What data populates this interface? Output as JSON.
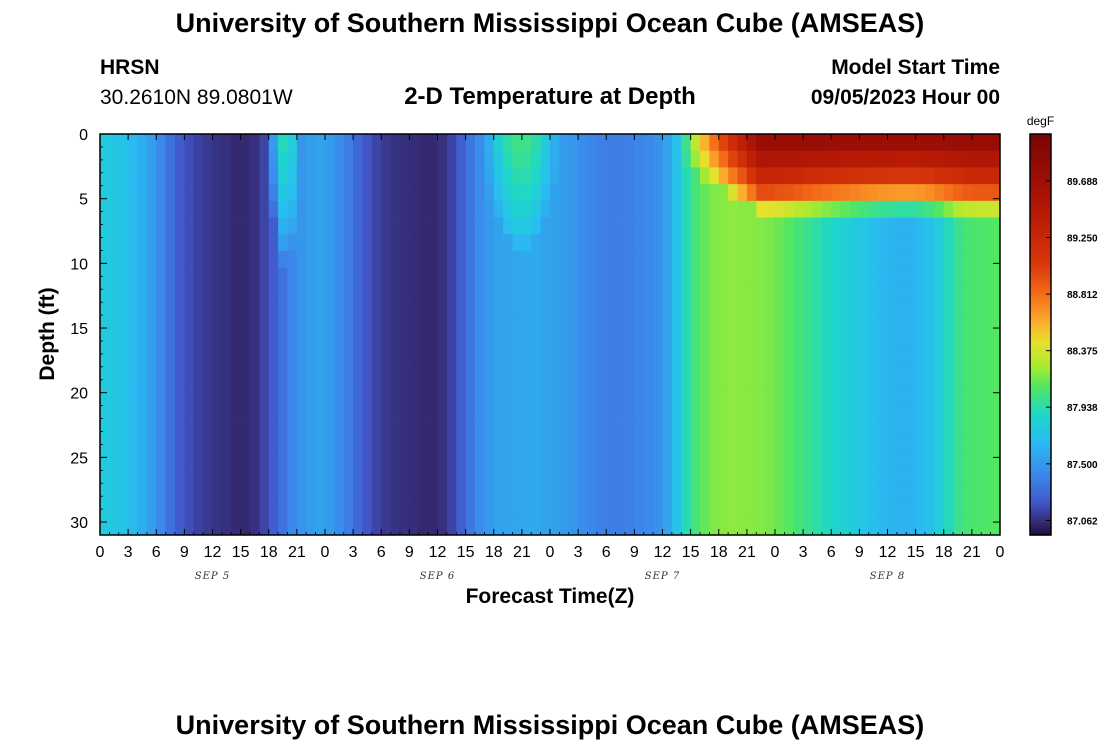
{
  "page": {
    "title_top": "University of Southern Mississippi Ocean Cube (AMSEAS)",
    "title_bottom": "University of Southern Mississippi Ocean Cube (AMSEAS)",
    "station": "HRSN",
    "coords": "30.2610N  89.0801W",
    "subtitle": "2-D Temperature at Depth",
    "model_start_label": "Model Start Time",
    "model_start_value": "09/05/2023 Hour 00"
  },
  "chart_data": {
    "type": "heatmap",
    "title": "2-D Temperature at Depth",
    "xlabel": "Forecast Time(Z)",
    "ylabel": "Depth (ft)",
    "x_unit": "hours since 09/05/2023 00Z",
    "x_range": [
      0,
      96
    ],
    "x_tick_labels": [
      "0",
      "3",
      "6",
      "9",
      "12",
      "15",
      "18",
      "21",
      "0",
      "3",
      "6",
      "9",
      "12",
      "15",
      "18",
      "21",
      "0",
      "3",
      "6",
      "9",
      "12",
      "15",
      "18",
      "21",
      "0",
      "3",
      "6",
      "9",
      "12",
      "15",
      "18",
      "21",
      "0"
    ],
    "date_labels": [
      "SEP 5",
      "SEP 6",
      "SEP 7",
      "SEP 8"
    ],
    "y_range": [
      0,
      31
    ],
    "y_reversed": true,
    "y_ticks": [
      0,
      5,
      10,
      15,
      20,
      25,
      30
    ],
    "colorbar": {
      "unit": "degF",
      "min": 86.95,
      "max": 90.05,
      "tick_labels": [
        "87.062",
        "87.500",
        "87.938",
        "88.375",
        "88.812",
        "89.250",
        "89.688"
      ]
    },
    "time_columns_hours": [
      0,
      1,
      2,
      3,
      4,
      5,
      6,
      7,
      8,
      9,
      10,
      11,
      12,
      13,
      14,
      15,
      16,
      17,
      18,
      19,
      20,
      21,
      22,
      23,
      24,
      25,
      26,
      27,
      28,
      29,
      30,
      31,
      32,
      33,
      34,
      35,
      36,
      37,
      38,
      39,
      40,
      41,
      42,
      43,
      44,
      45,
      46,
      47,
      48,
      49,
      50,
      51,
      52,
      53,
      54,
      55,
      56,
      57,
      58,
      59,
      60,
      61,
      62,
      63,
      64,
      65,
      66,
      67,
      68,
      69,
      70,
      71,
      72,
      73,
      74,
      75,
      76,
      77,
      78,
      79,
      80,
      81,
      82,
      83,
      84,
      85,
      86,
      87,
      88,
      89,
      90,
      91,
      92,
      93,
      94,
      95
    ],
    "deep_temperature_degF": [
      87.78,
      87.76,
      87.73,
      87.68,
      87.62,
      87.53,
      87.42,
      87.32,
      87.23,
      87.17,
      87.13,
      87.1,
      87.08,
      87.07,
      87.05,
      87.05,
      87.07,
      87.14,
      87.23,
      87.33,
      87.42,
      87.49,
      87.53,
      87.55,
      87.52,
      87.45,
      87.37,
      87.28,
      87.2,
      87.14,
      87.1,
      87.08,
      87.07,
      87.06,
      87.05,
      87.05,
      87.07,
      87.14,
      87.24,
      87.35,
      87.44,
      87.51,
      87.55,
      87.56,
      87.57,
      87.58,
      87.58,
      87.56,
      87.55,
      87.52,
      87.49,
      87.45,
      87.41,
      87.39,
      87.38,
      87.38,
      87.39,
      87.41,
      87.43,
      87.47,
      87.56,
      87.72,
      87.92,
      88.05,
      88.13,
      88.18,
      88.2,
      88.21,
      88.2,
      88.2,
      88.19,
      88.17,
      88.14,
      88.1,
      88.05,
      88.0,
      87.95,
      87.9,
      87.86,
      87.82,
      87.78,
      87.74,
      87.7,
      87.67,
      87.65,
      87.63,
      87.64,
      87.67,
      87.72,
      87.8,
      87.9,
      88.0,
      88.06,
      88.08,
      88.09,
      88.1
    ],
    "surface_warm_layers": [
      {
        "start_hour": 18,
        "end_hour": 22,
        "peak_degF": 87.95,
        "depth_ft": 10
      },
      {
        "start_hour": 41,
        "end_hour": 50,
        "peak_degF": 88.05,
        "depth_ft": 9
      },
      {
        "start_hour": 62,
        "end_hour": 96,
        "peak_degF": 89.85,
        "depth_ft": 6
      }
    ]
  }
}
